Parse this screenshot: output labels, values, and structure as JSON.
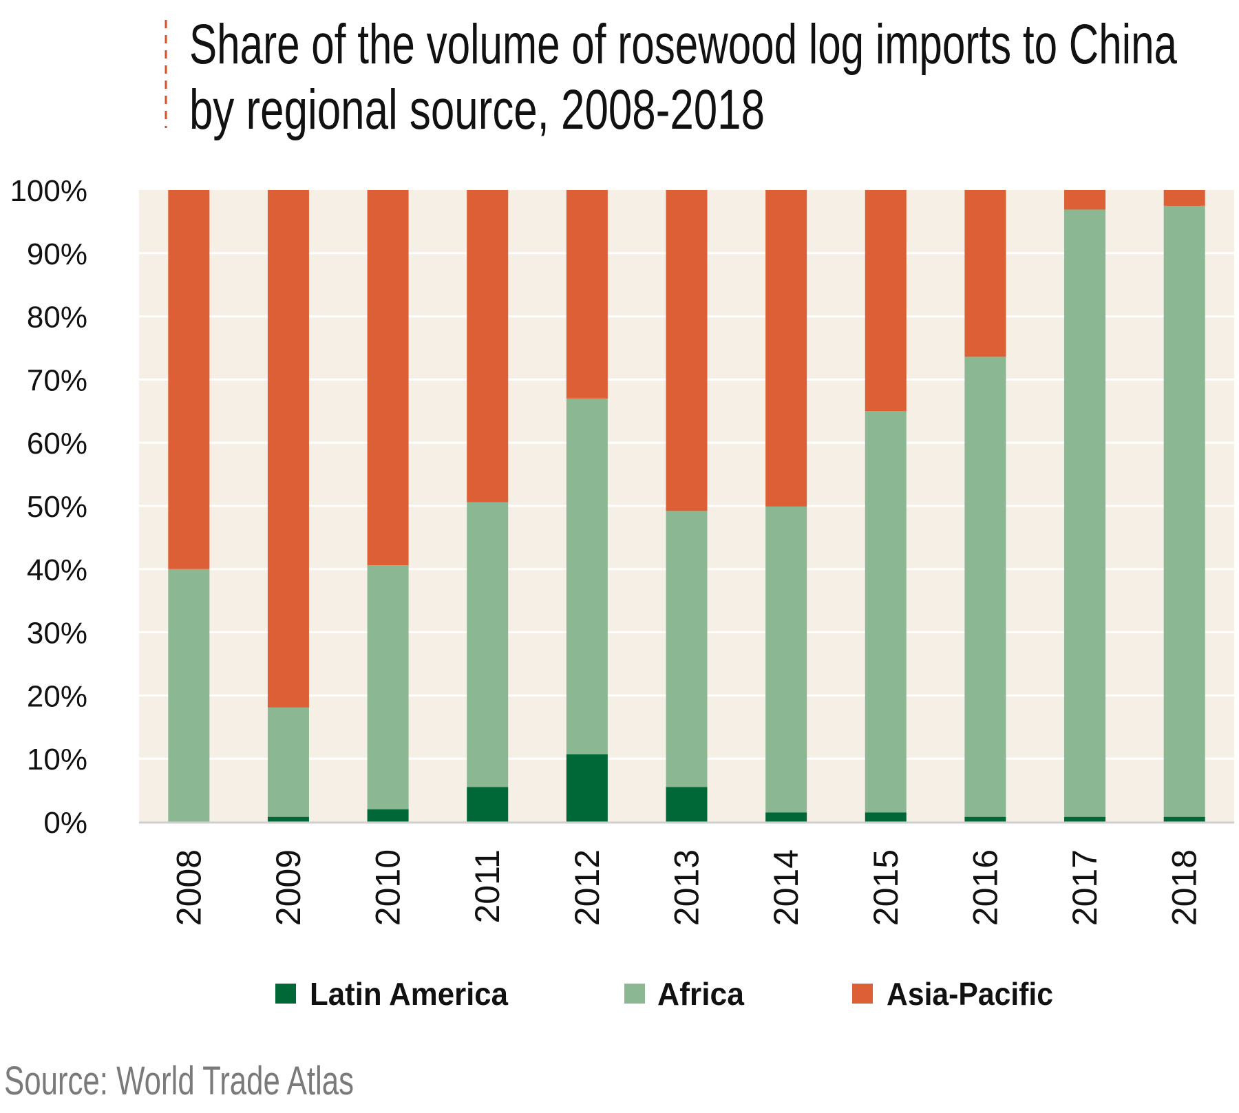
{
  "chart_data": {
    "type": "bar",
    "stacked": true,
    "title": "Share of the volume of rosewood log imports to China by regional source, 2008-2018",
    "title_lines": [
      "Share of the volume of rosewood log imports to China",
      "by regional source, 2008-2018"
    ],
    "xlabel": "",
    "ylabel": "",
    "categories": [
      "2008",
      "2009",
      "2010",
      "2011",
      "2012",
      "2013",
      "2014",
      "2015",
      "2016",
      "2017",
      "2018"
    ],
    "ylim": [
      0,
      100
    ],
    "yticks": [
      "0%",
      "10%",
      "20%",
      "30%",
      "40%",
      "50%",
      "60%",
      "70%",
      "80%",
      "90%",
      "100%"
    ],
    "grid": true,
    "legend_position": "bottom",
    "series": [
      {
        "name": "Latin America",
        "color": "#006837",
        "values": [
          0,
          0.8,
          2,
          5.5,
          10.7,
          5.5,
          1.5,
          1.5,
          0.8,
          0.8,
          0.8
        ]
      },
      {
        "name": "Africa",
        "color": "#8bb893",
        "values": [
          40,
          17.3,
          38.6,
          45.1,
          56.3,
          43.7,
          48.4,
          63.5,
          72.8,
          96.1,
          96.7
        ]
      },
      {
        "name": "Asia-Pacific",
        "color": "#dd5f35",
        "values": [
          60,
          81.9,
          59.4,
          49.4,
          33,
          50.8,
          50.1,
          35,
          26.4,
          3.1,
          2.5
        ]
      }
    ],
    "plot_background": "#f6efe5",
    "source": "Source: World Trade Atlas"
  }
}
